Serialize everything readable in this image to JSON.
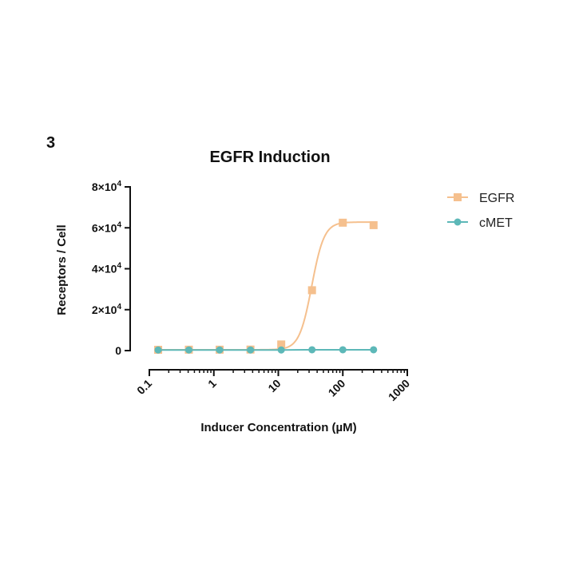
{
  "panel_label": "3",
  "chart_data": {
    "type": "line",
    "title": "EGFR Induction",
    "xlabel": "Inducer Concentration (µM)",
    "ylabel": "Receptors / Cell",
    "x_scale": "log",
    "xlim": [
      0.1,
      1000
    ],
    "ylim": [
      0,
      80000
    ],
    "x_ticks": [
      0.1,
      1,
      10,
      100,
      1000
    ],
    "x_tick_labels": [
      "0.1",
      "1",
      "10",
      "100",
      "1000"
    ],
    "y_ticks": [
      0,
      20000,
      40000,
      60000,
      80000
    ],
    "y_tick_labels": [
      {
        "base": "0",
        "exp": ""
      },
      {
        "base": "2×10",
        "exp": "4"
      },
      {
        "base": "4×10",
        "exp": "4"
      },
      {
        "base": "6×10",
        "exp": "4"
      },
      {
        "base": "8×10",
        "exp": "4"
      }
    ],
    "legend_position": "top-right",
    "series": [
      {
        "name": "EGFR",
        "color": "#F5C08E",
        "marker": "square",
        "x": [
          0.137,
          0.41,
          1.23,
          3.7,
          11.1,
          33.3,
          100,
          300
        ],
        "y": [
          400,
          450,
          450,
          500,
          3000,
          29500,
          62500,
          61300
        ],
        "fit": {
          "bottom": 400,
          "top": 62800,
          "ec50": 33,
          "hill": 4.5
        }
      },
      {
        "name": "cMET",
        "color": "#5DB8B8",
        "marker": "circle",
        "x": [
          0.137,
          0.41,
          1.23,
          3.7,
          11.1,
          33.3,
          100,
          300
        ],
        "y": [
          300,
          300,
          300,
          300,
          300,
          400,
          400,
          400
        ]
      }
    ]
  }
}
